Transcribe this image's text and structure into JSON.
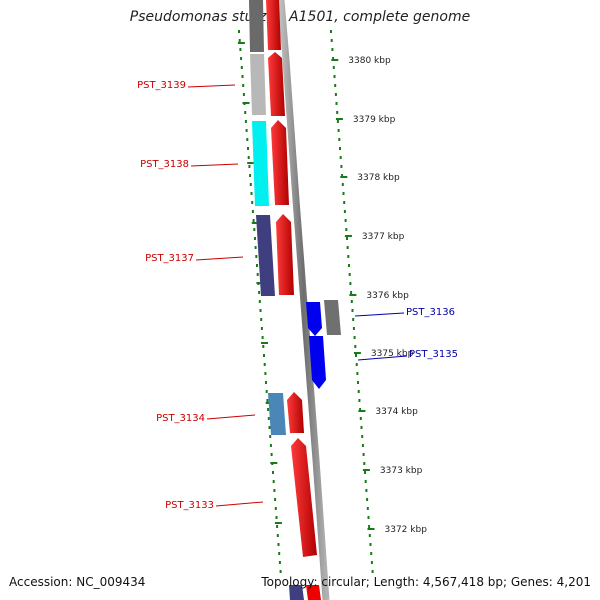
{
  "title": "Pseudomonas stutzeri A1501, complete genome",
  "accession_label": "Accession: NC_009434",
  "topology_label": "Topology: circular; Length: 4,567,418 bp; Genes: 4,201",
  "scale_ticks": [
    "3380 kbp",
    "3379 kbp",
    "3378 kbp",
    "3377 kbp",
    "3376 kbp",
    "3375 kbp",
    "3374 kbp",
    "3373 kbp",
    "3372 kbp"
  ],
  "genes": [
    {
      "name": "PST_3139",
      "strand": "left",
      "color": "#b0b0b0"
    },
    {
      "name": "PST_3138",
      "strand": "left",
      "color": "#00e5e5"
    },
    {
      "name": "PST_3137",
      "strand": "left",
      "color": "#3b3b7a"
    },
    {
      "name": "PST_3136",
      "strand": "right",
      "color": "#0000ee"
    },
    {
      "name": "PST_3135",
      "strand": "right",
      "color": "#0000ee"
    },
    {
      "name": "PST_3134",
      "strand": "left",
      "color": "#4682b4"
    },
    {
      "name": "PST_3133",
      "strand": "left",
      "color": "#ee0000"
    }
  ],
  "colors": {
    "left_label": "#cc0000",
    "right_label": "#0000aa",
    "tick": "#1a7a1a",
    "backbone": "#888888",
    "cds": "#ee0000"
  }
}
